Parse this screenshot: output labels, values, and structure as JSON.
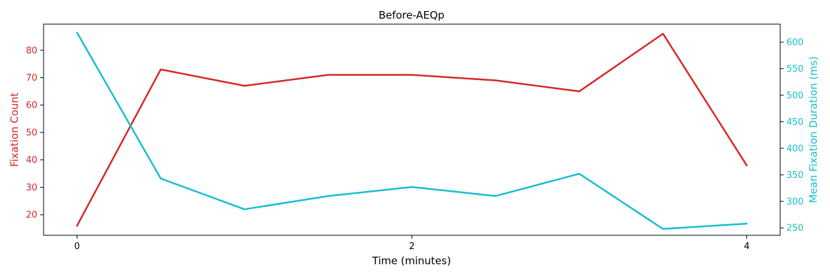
{
  "chart_data": {
    "type": "line",
    "title": "Before-AEQp",
    "xlabel": "Time (minutes)",
    "ylabel_left": "Fixation Count",
    "ylabel_right": "Mean Fixation Duration (ms)",
    "x": [
      0,
      0.5,
      1,
      1.5,
      2,
      2.5,
      3,
      3.5,
      4
    ],
    "xlim": [
      -0.2,
      4.2
    ],
    "xticks": [
      0,
      2,
      4
    ],
    "ylim_left": [
      12.5,
      89.5
    ],
    "yticks_left": [
      20,
      30,
      40,
      50,
      60,
      70,
      80
    ],
    "ylim_right": [
      236,
      634
    ],
    "yticks_right": [
      250,
      300,
      350,
      400,
      450,
      500,
      550,
      600
    ],
    "grid": false,
    "legend": "none",
    "series": [
      {
        "axis": "left",
        "color": "#d62728",
        "values": [
          16,
          73,
          67,
          71,
          71,
          69,
          65,
          86,
          38
        ]
      },
      {
        "axis": "right",
        "color": "#17becf",
        "values": [
          618,
          343,
          285,
          310,
          327,
          310,
          352,
          248,
          258
        ]
      }
    ]
  }
}
